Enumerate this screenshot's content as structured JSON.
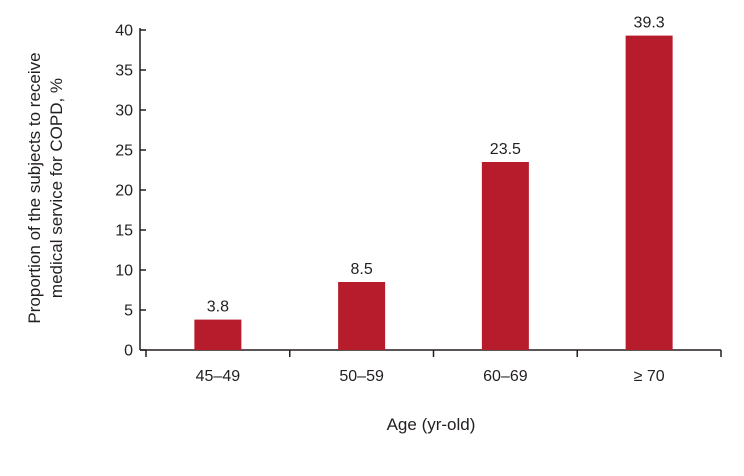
{
  "chart_data": {
    "type": "bar",
    "categories": [
      "45–49",
      "50–59",
      "60–69",
      "≥ 70"
    ],
    "series": [
      {
        "values": [
          3.8,
          8.5,
          23.5,
          39.3
        ],
        "color": "#b71c2c"
      }
    ],
    "data_labels": [
      "3.8",
      "8.5",
      "23.5",
      "39.3"
    ],
    "title": "",
    "xlabel": "Age (yr-old)",
    "ylabel_lines": [
      "Proportion of the subjects to receive",
      "medical service for COPD, %"
    ],
    "ylim": [
      0,
      40
    ],
    "yticks": [
      0,
      5,
      10,
      15,
      20,
      25,
      30,
      35,
      40
    ],
    "grid": false,
    "legend": "none"
  }
}
